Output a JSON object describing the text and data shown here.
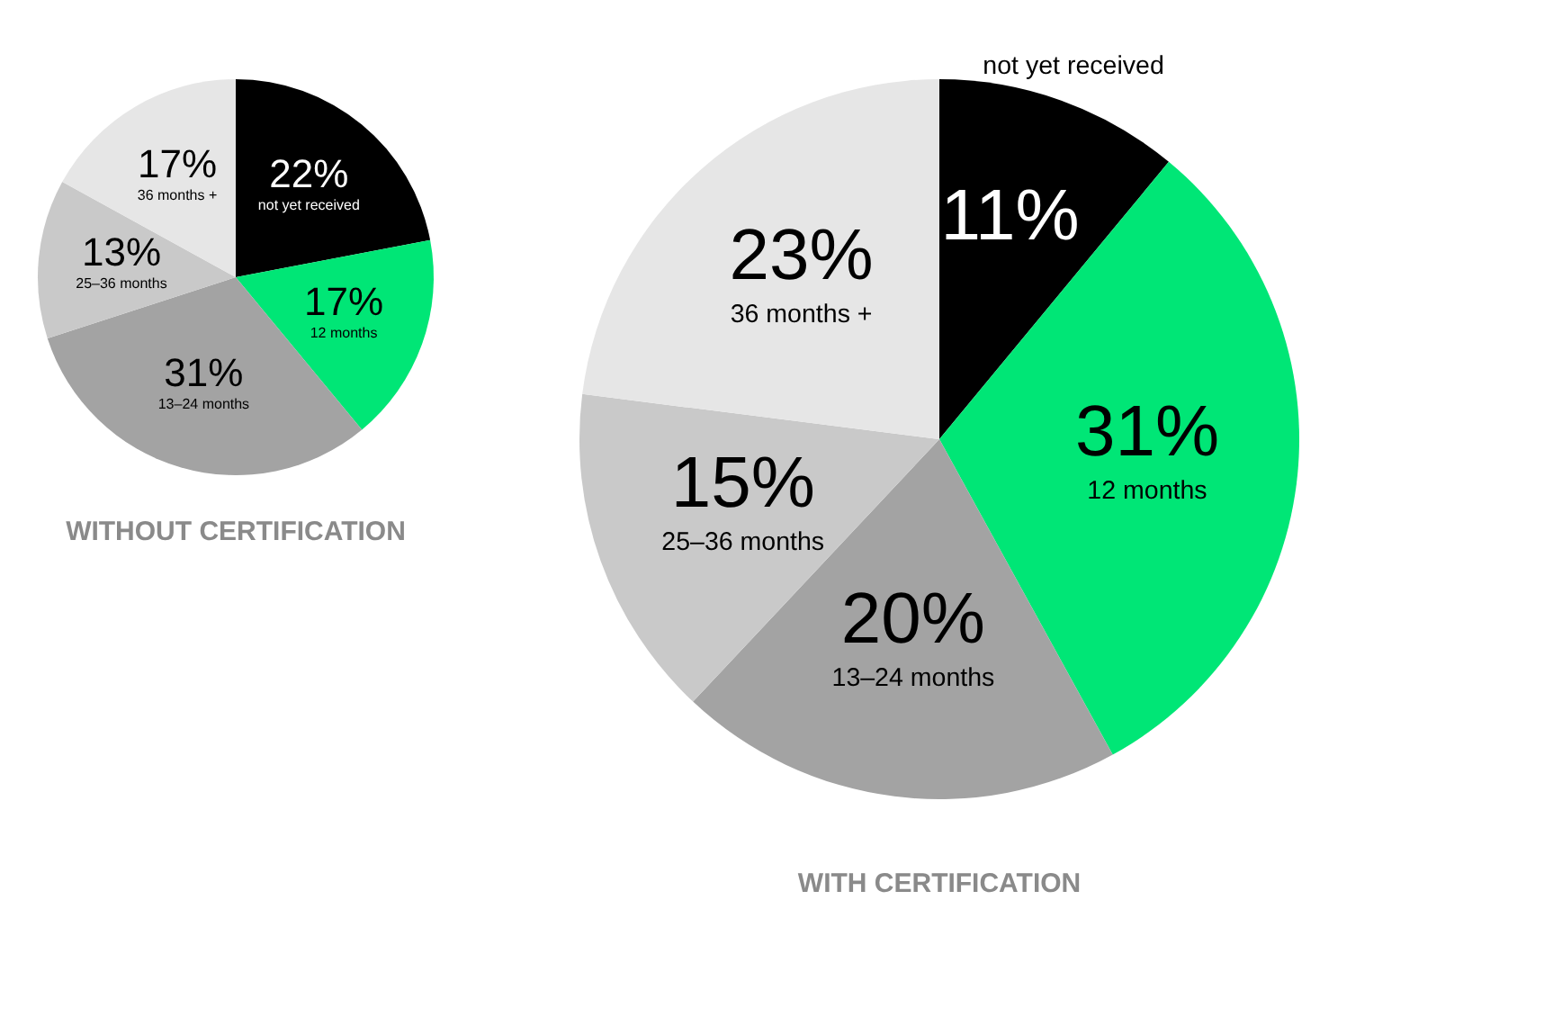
{
  "chart_data": [
    {
      "type": "pie",
      "title": "WITHOUT CERTIFICATION",
      "categories": [
        "not yet received",
        "12 months",
        "13–24 months",
        "25–36 months",
        "36 months +"
      ],
      "values": [
        22,
        17,
        31,
        13,
        17
      ],
      "value_labels": [
        "22%",
        "17%",
        "31%",
        "13%",
        "17%"
      ],
      "colors": [
        "#000000",
        "#00e676",
        "#a3a3a3",
        "#c9c9c9",
        "#e6e6e6"
      ],
      "legend": false
    },
    {
      "type": "pie",
      "title": "WITH CERTIFICATION",
      "categories": [
        "not yet received",
        "12 months",
        "13–24 months",
        "25–36 months",
        "36 months +"
      ],
      "values": [
        11,
        31,
        20,
        15,
        23
      ],
      "value_labels": [
        "11%",
        "31%",
        "20%",
        "15%",
        "23%"
      ],
      "colors": [
        "#000000",
        "#00e676",
        "#a3a3a3",
        "#c9c9c9",
        "#e6e6e6"
      ],
      "legend": false
    }
  ]
}
